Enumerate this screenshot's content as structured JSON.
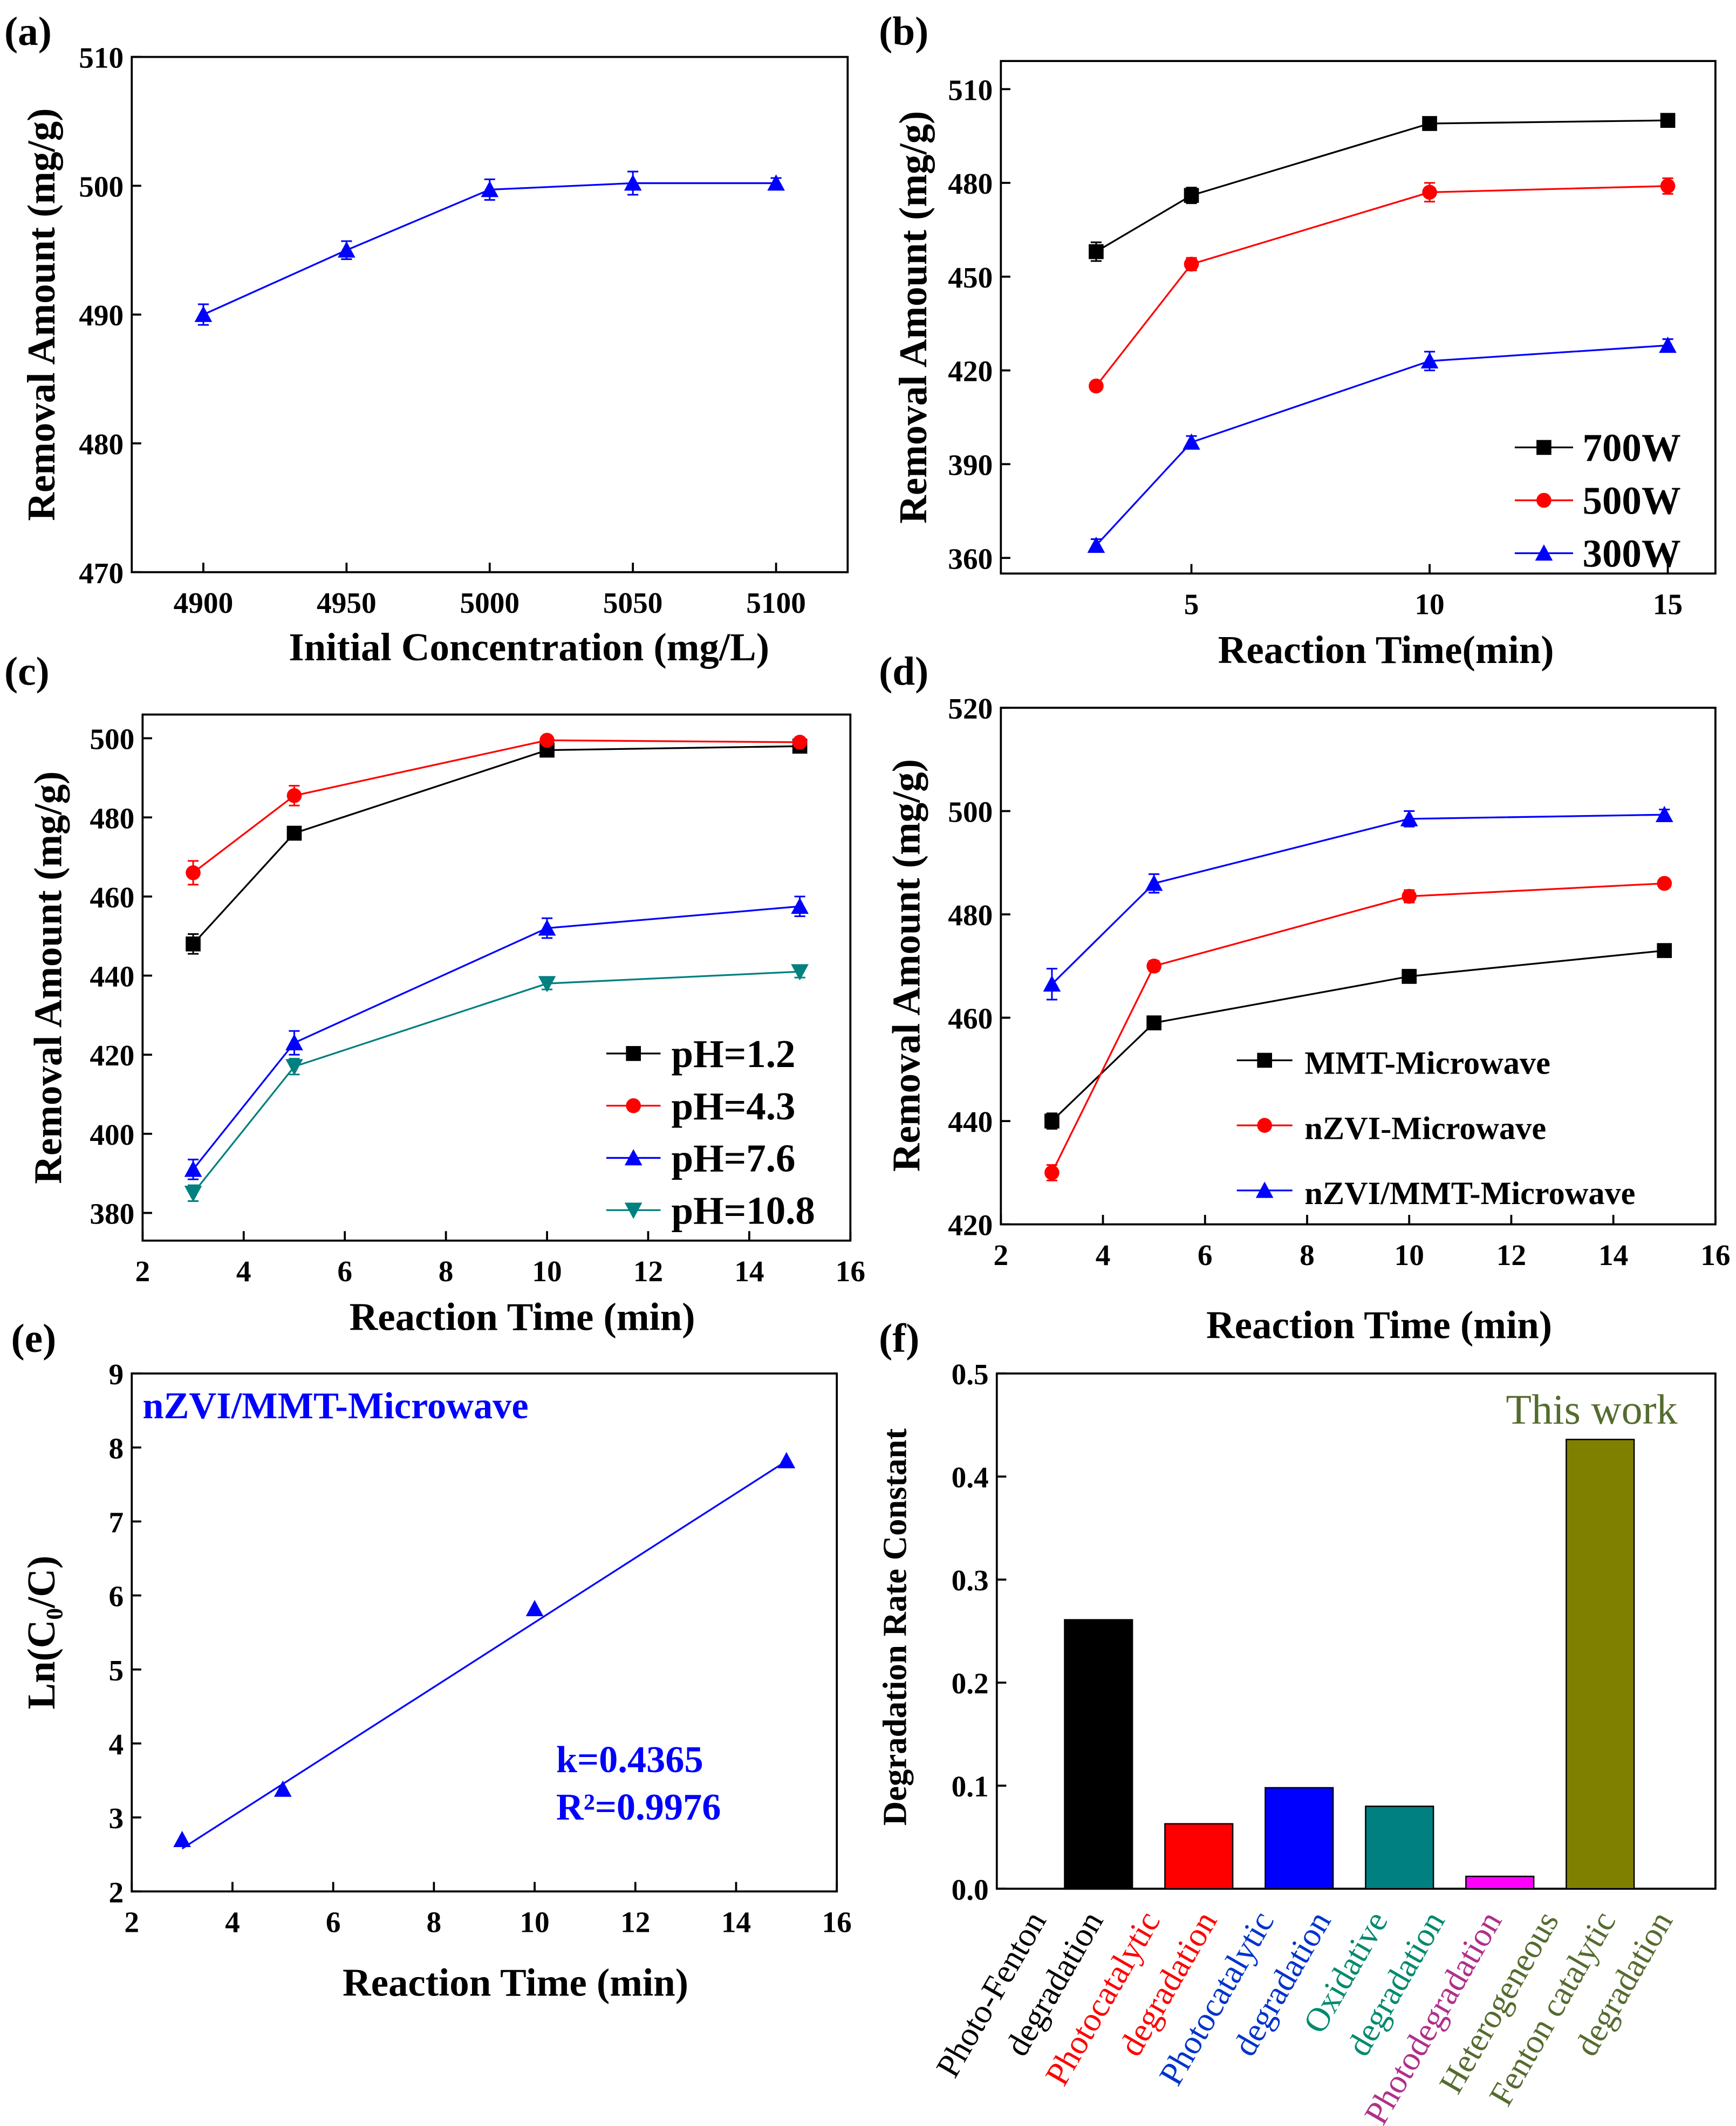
{
  "colors": {
    "black": "#000000",
    "red": "#ff0000",
    "blue": "#0000ff",
    "teal": "#008080",
    "magenta": "#ff00ff",
    "olive": "#808000",
    "olive_text": "#556b2f"
  },
  "chart_data": [
    {
      "panel": "(a)",
      "type": "line",
      "xlabel": "Initial Concentration (mg/L)",
      "ylabel": "Removal Amount  (mg/g)",
      "xlim": [
        4875,
        5125
      ],
      "ylim": [
        470,
        510
      ],
      "xticks": [
        4900,
        4950,
        5000,
        5050,
        5100
      ],
      "yticks": [
        470,
        480,
        490,
        500,
        510
      ],
      "series": [
        {
          "name": "",
          "color": "#0000ff",
          "marker": "triangle",
          "x": [
            4900,
            4950,
            5000,
            5050,
            5100
          ],
          "y": [
            490,
            495,
            499.7,
            500.2,
            500.2
          ],
          "err": [
            0.8,
            0.7,
            0.8,
            0.9,
            0.4
          ]
        }
      ],
      "legend": false
    },
    {
      "panel": "(b)",
      "type": "line",
      "xlabel": "Reaction Time(min)",
      "ylabel": "Removal Amount  (mg/g)",
      "xlim": [
        1,
        16
      ],
      "ylim": [
        355,
        519
      ],
      "xticks": [
        5,
        10,
        15
      ],
      "yticks": [
        360,
        390,
        420,
        450,
        480,
        510
      ],
      "series": [
        {
          "name": "700W",
          "color": "#000000",
          "marker": "square",
          "x": [
            3,
            5,
            10,
            15
          ],
          "y": [
            458,
            476,
            499,
            500
          ],
          "err": [
            3,
            2.5,
            1.5,
            1.5
          ]
        },
        {
          "name": "500W",
          "color": "#ff0000",
          "marker": "circle",
          "x": [
            3,
            5,
            10,
            15
          ],
          "y": [
            415,
            454,
            477,
            479
          ],
          "err": [
            1,
            2,
            3,
            2.5
          ]
        },
        {
          "name": "300W",
          "color": "#0000ff",
          "marker": "triangle",
          "x": [
            3,
            5,
            10,
            15
          ],
          "y": [
            364,
            397,
            423,
            428
          ],
          "err": [
            2,
            2,
            3,
            2
          ]
        }
      ],
      "legend": "bottom-right"
    },
    {
      "panel": "(c)",
      "type": "line",
      "xlabel": "Reaction Time (min)",
      "ylabel": "Removal Amount  (mg/g)",
      "xlim": [
        2,
        16
      ],
      "ylim": [
        373,
        506
      ],
      "xticks": [
        2,
        4,
        6,
        8,
        10,
        12,
        14,
        16
      ],
      "yticks": [
        380,
        400,
        420,
        440,
        460,
        480,
        500
      ],
      "series": [
        {
          "name": "pH=1.2",
          "color": "#000000",
          "marker": "square",
          "x": [
            3,
            5,
            10,
            15
          ],
          "y": [
            448,
            476,
            497,
            498
          ],
          "err": [
            2.5,
            1.5,
            1,
            1
          ]
        },
        {
          "name": "pH=4.3",
          "color": "#ff0000",
          "marker": "circle",
          "x": [
            3,
            5,
            10,
            15
          ],
          "y": [
            466,
            485.5,
            499.5,
            499
          ],
          "err": [
            3,
            2.5,
            1,
            1
          ]
        },
        {
          "name": "pH=7.6",
          "color": "#0000ff",
          "marker": "triangle",
          "x": [
            3,
            5,
            10,
            15
          ],
          "y": [
            391,
            423,
            452,
            457.5
          ],
          "err": [
            2.5,
            3,
            2.5,
            2.5
          ]
        },
        {
          "name": "pH=10.8",
          "color": "#008080",
          "marker": "triangle-down",
          "x": [
            3,
            5,
            10,
            15
          ],
          "y": [
            385,
            417,
            438,
            441
          ],
          "err": [
            2,
            2,
            1.5,
            1.5
          ]
        }
      ],
      "legend": "bottom-right"
    },
    {
      "panel": "(d)",
      "type": "line",
      "xlabel": "Reaction Time (min)",
      "ylabel": "Removal Amount  (mg/g)",
      "xlim": [
        2,
        16
      ],
      "ylim": [
        420,
        520
      ],
      "xticks": [
        2,
        4,
        6,
        8,
        10,
        12,
        14,
        16
      ],
      "yticks": [
        420,
        440,
        460,
        480,
        500,
        520
      ],
      "series": [
        {
          "name": "MMT-Microwave",
          "color": "#000000",
          "marker": "square",
          "x": [
            3,
            5,
            10,
            15
          ],
          "y": [
            440,
            459,
            468,
            473
          ],
          "err": [
            1.5,
            0.8,
            0.8,
            0.8
          ]
        },
        {
          "name": "nZVI-Microwave",
          "color": "#ff0000",
          "marker": "circle",
          "x": [
            3,
            5,
            10,
            15
          ],
          "y": [
            430,
            470,
            483.5,
            486
          ],
          "err": [
            1.5,
            1,
            1.2,
            0.8
          ]
        },
        {
          "name": "nZVI/MMT-Microwave",
          "color": "#0000ff",
          "marker": "triangle",
          "x": [
            3,
            5,
            10,
            15
          ],
          "y": [
            466.5,
            486,
            498.5,
            499.3
          ],
          "err": [
            3,
            1.8,
            1.5,
            1
          ]
        }
      ],
      "legend": "bottom-right"
    },
    {
      "panel": "(e)",
      "type": "scatter",
      "xlabel": "Reaction Time (min)",
      "ylabel": "Ln(C₀/C)",
      "xlim": [
        2,
        16
      ],
      "ylim": [
        2,
        9
      ],
      "xticks": [
        2,
        4,
        6,
        8,
        10,
        12,
        14,
        16
      ],
      "yticks": [
        2,
        3,
        4,
        5,
        6,
        7,
        8,
        9
      ],
      "series": [
        {
          "name": "nZVI/MMT-Microwave",
          "color": "#0000ff",
          "marker": "triangle",
          "x": [
            3,
            5,
            10,
            15
          ],
          "y": [
            2.7,
            3.38,
            5.82,
            7.82
          ],
          "err": [
            0,
            0,
            0,
            0
          ]
        }
      ],
      "fit": {
        "slope": 0.4365,
        "intercept": 1.27,
        "x": [
          3,
          15
        ],
        "color": "#0000ff"
      },
      "annotations": {
        "title": "nZVI/MMT-Microwave",
        "k": "k=0.4365",
        "r2": "R²=0.9976"
      },
      "legend": false
    },
    {
      "panel": "(f)",
      "type": "bar",
      "xlabel": "",
      "ylabel": "Degradation Rate Constant",
      "ylim": [
        0,
        0.5
      ],
      "yticks": [
        "0.0",
        "0.1",
        "0.2",
        "0.3",
        "0.4",
        "0.5"
      ],
      "categories": [
        {
          "lines": [
            "Photo-Fenton",
            "degradation"
          ],
          "value": 0.261,
          "color": "#000000",
          "text_color": "#000000"
        },
        {
          "lines": [
            "Photocatalytic",
            "degradation"
          ],
          "value": 0.063,
          "color": "#ff0000",
          "text_color": "#ff0000"
        },
        {
          "lines": [
            "Photocatalytic",
            "degradation"
          ],
          "value": 0.098,
          "color": "#0000ff",
          "text_color": "#0033cc"
        },
        {
          "lines": [
            "Oxidative",
            "degradation"
          ],
          "value": 0.08,
          "color": "#008080",
          "text_color": "#008a6e"
        },
        {
          "lines": [
            "Photodegradation"
          ],
          "value": 0.012,
          "color": "#ff00ff",
          "text_color": "#b0308a"
        },
        {
          "lines": [
            "Heterogeneous",
            "Fenton catalytic",
            "degradation"
          ],
          "value": 0.436,
          "color": "#808000",
          "text_color": "#556b2f"
        }
      ],
      "annotation": "This work"
    }
  ]
}
